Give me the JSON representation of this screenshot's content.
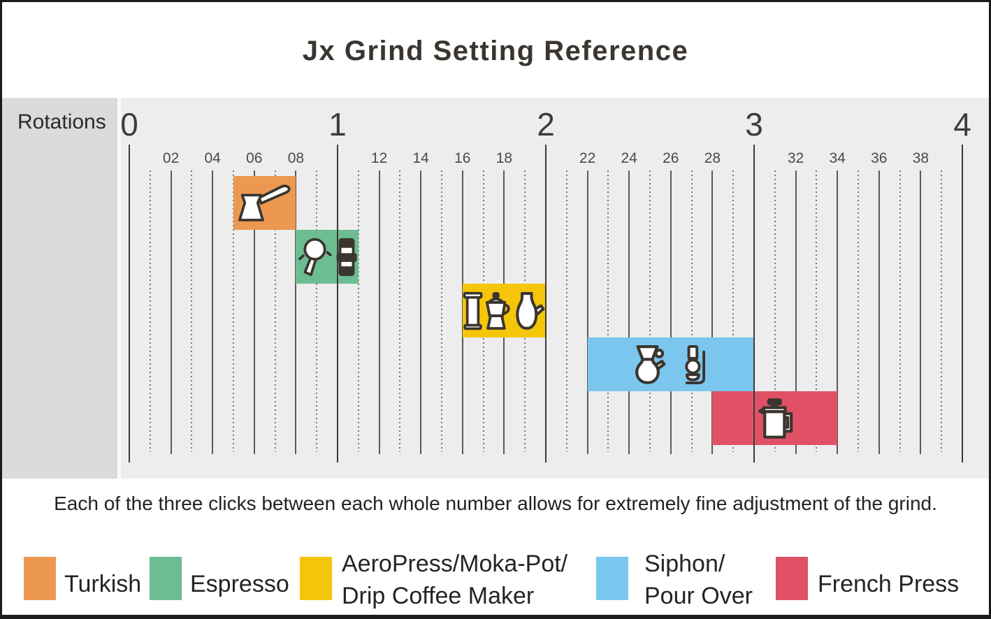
{
  "title": "Jx Grind Setting Reference",
  "axis": {
    "label": "Rotations",
    "major_ticks": [
      "0",
      "1",
      "2",
      "3",
      "4"
    ],
    "minor_tick_labels": [
      "02",
      "04",
      "06",
      "08",
      "12",
      "14",
      "16",
      "18",
      "22",
      "24",
      "26",
      "28",
      "32",
      "34",
      "36",
      "38"
    ]
  },
  "caption": "Each of the three clicks between each whole number allows for extremely fine adjustment of the grind.",
  "chart_data": {
    "type": "range-bar",
    "title": "Jx Grind Setting Reference",
    "xlabel": "Rotations",
    "xlim": [
      0,
      4
    ],
    "x_major_ticks": [
      0,
      1,
      2,
      3,
      4
    ],
    "x_minor_division": 0.1,
    "grid": "vertical lines: solid at even tenths, dotted at odd tenths",
    "legend_position": "bottom",
    "series": [
      {
        "name": "Turkish",
        "start": 0.5,
        "end": 0.8,
        "row": 1,
        "color": "#EC9851",
        "icons": [
          "cezve-icon"
        ]
      },
      {
        "name": "Espresso",
        "start": 0.8,
        "end": 1.1,
        "row": 2,
        "color": "#6CBD92",
        "icons": [
          "portafilter-icon",
          "tamper-icon"
        ]
      },
      {
        "name": "AeroPress/Moka-Pot/Drip Coffee Maker",
        "start": 1.6,
        "end": 2.0,
        "row": 3,
        "color": "#F5C50A",
        "icons": [
          "aeropress-icon",
          "moka-pot-icon",
          "coffee-server-icon"
        ]
      },
      {
        "name": "Siphon/Pour Over",
        "start": 2.2,
        "end": 3.0,
        "row": 4,
        "color": "#7BC6EE",
        "icons": [
          "pour-over-icon",
          "siphon-icon"
        ]
      },
      {
        "name": "French Press",
        "start": 2.8,
        "end": 3.4,
        "row": 5,
        "color": "#E15166",
        "icons": [
          "french-press-icon"
        ]
      }
    ]
  },
  "legend": {
    "items": [
      {
        "lines": [
          "Turkish"
        ],
        "color": "#EC9851"
      },
      {
        "lines": [
          "Espresso"
        ],
        "color": "#6CBD92"
      },
      {
        "lines": [
          "AeroPress/Moka-Pot/",
          "Drip Coffee Maker"
        ],
        "color": "#F5C50A"
      },
      {
        "lines": [
          "Siphon/",
          "Pour Over"
        ],
        "color": "#7BC6EE"
      },
      {
        "lines": [
          "French Press"
        ],
        "color": "#E15166"
      }
    ]
  },
  "colors": {
    "page_background": "#FFFFFF",
    "chart_background": "#EDEDED",
    "sidebar_background": "#DBDBDB",
    "border": "#1B1B1B",
    "grid_line": "#4A4A4A",
    "text": "#2D2A27"
  }
}
